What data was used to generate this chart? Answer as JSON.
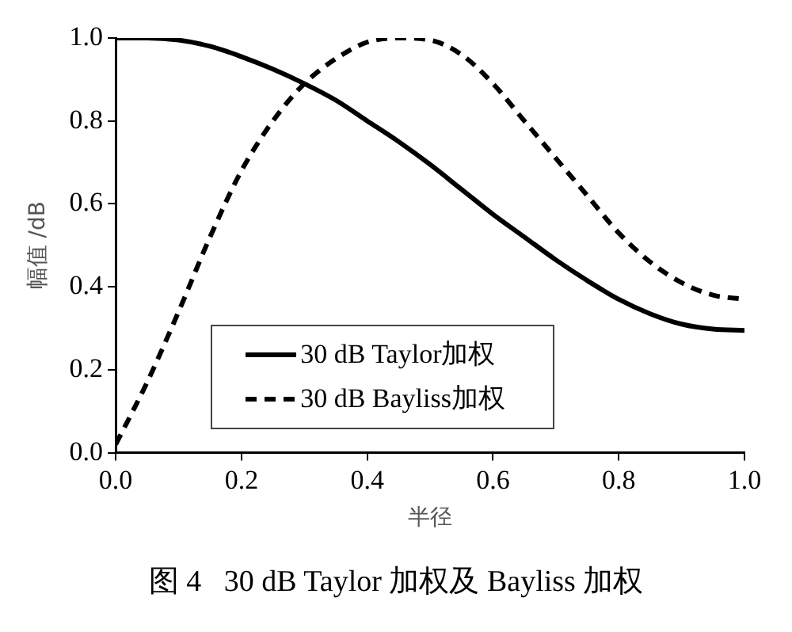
{
  "chart_data": {
    "type": "line",
    "xlabel": "半径",
    "ylabel": "幅值 /dB",
    "annotations": [
      "图 4   30 dB Taylor 加权及 Bayliss 加权"
    ],
    "xlim": [
      0,
      1
    ],
    "ylim": [
      0,
      1
    ],
    "xticks": [
      {
        "value": 0,
        "label": "0.0"
      },
      {
        "value": 0.2,
        "label": "0.2"
      },
      {
        "value": 0.4,
        "label": "0.4"
      },
      {
        "value": 0.6,
        "label": "0.6"
      },
      {
        "value": 0.8,
        "label": "0.8"
      },
      {
        "value": 1,
        "label": "1.0"
      }
    ],
    "yticks": [
      {
        "value": 0,
        "label": "0.0"
      },
      {
        "value": 0.2,
        "label": "0.2"
      },
      {
        "value": 0.4,
        "label": "0.4"
      },
      {
        "value": 0.6,
        "label": "0.6"
      },
      {
        "value": 0.8,
        "label": "0.8"
      },
      {
        "value": 1,
        "label": "1.0"
      }
    ],
    "x": [
      0,
      0.05,
      0.1,
      0.15,
      0.2,
      0.25,
      0.3,
      0.35,
      0.4,
      0.45,
      0.5,
      0.55,
      0.6,
      0.65,
      0.7,
      0.75,
      0.8,
      0.85,
      0.9,
      0.95,
      1
    ],
    "series": [
      {
        "name": "30 dB Taylor加权",
        "color": "#000000",
        "line_style": "solid",
        "values": [
          1,
          1,
          0.995,
          0.98,
          0.955,
          0.925,
          0.89,
          0.85,
          0.8,
          0.75,
          0.695,
          0.635,
          0.575,
          0.52,
          0.465,
          0.415,
          0.37,
          0.335,
          0.31,
          0.298,
          0.295
        ]
      },
      {
        "name": "30 dB Bayliss加权",
        "color": "#000000",
        "line_style": "dashed",
        "values": [
          0.02,
          0.17,
          0.34,
          0.52,
          0.68,
          0.8,
          0.89,
          0.95,
          0.99,
          1,
          0.995,
          0.96,
          0.89,
          0.8,
          0.71,
          0.62,
          0.53,
          0.46,
          0.41,
          0.38,
          0.37
        ]
      }
    ],
    "legend": "bottom",
    "grid": false,
    "marker": "none"
  }
}
